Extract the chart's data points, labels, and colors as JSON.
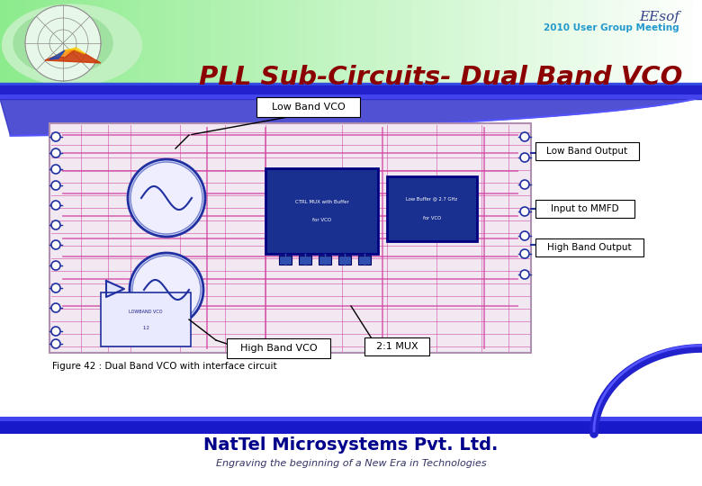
{
  "title": "PLL Sub-Circuits- Dual Band VCO",
  "eesof_line1": "EEsof",
  "eesof_line2": "2010 User Group Meeting",
  "bg_color": "#ffffff",
  "title_color": "#8b0000",
  "footer_company": "NatTel Microsystems Pvt. Ltd.",
  "footer_subtitle": "Engraving the beginning of a New Era in Technologies",
  "footer_text_color": "#00008b",
  "footer_sub_color": "#333333",
  "figure_caption": "Figure 42 : Dual Band VCO with interface circuit",
  "callouts": {
    "low_band_vco": "Low Band VCO",
    "low_band_output": "Low Band Output",
    "input_mmfd": "Input to MMFD",
    "high_band_output": "High Band Output",
    "high_band_vco": "High Band VCO",
    "mux": "2:1 MUX"
  },
  "circuit_fill": "#f5eaf5",
  "circuit_edge": "#c0a0c0",
  "pink_wire": "#d040a0",
  "blue_wire": "#2030a0",
  "blue_box": "#1a3090",
  "header_green1": "#90ee90",
  "header_green2": "#d0f5d0",
  "blue_bar": "#2020cc",
  "blue_bar2": "#4444ff"
}
